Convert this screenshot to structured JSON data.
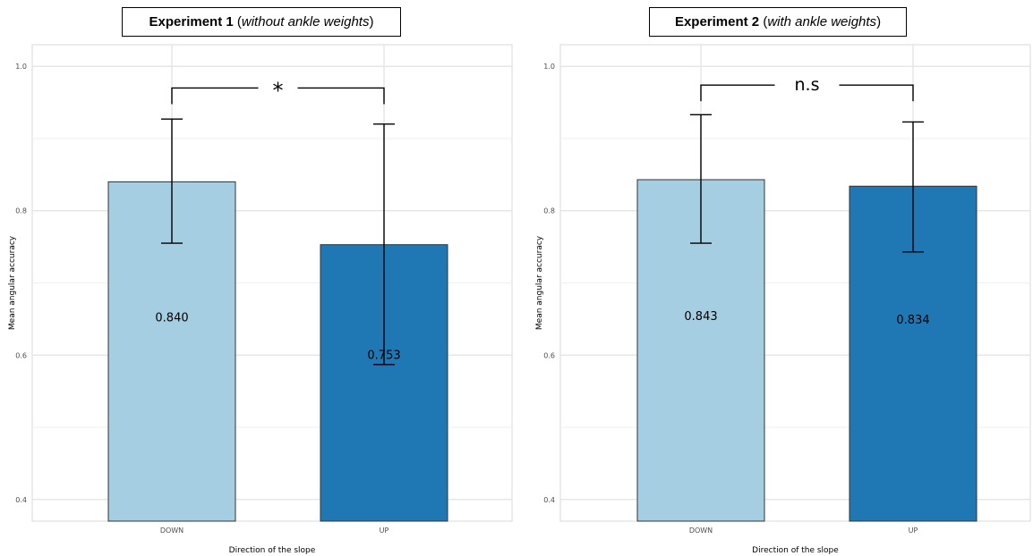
{
  "chart_data": [
    {
      "type": "bar",
      "title": {
        "bold": "Experiment 1",
        "italic": "without ankle weights"
      },
      "xlabel": "Direction of the slope",
      "ylabel": "Mean angular accuracy",
      "categories": [
        "DOWN",
        "UP"
      ],
      "values": [
        0.84,
        0.753
      ],
      "value_labels": [
        "0.840",
        "0.753"
      ],
      "error_bars": [
        {
          "low": 0.755,
          "high": 0.927
        },
        {
          "low": 0.587,
          "high": 0.92
        }
      ],
      "bar_colors": [
        "#a6cee3",
        "#1f78b4"
      ],
      "ylim": [
        0.37,
        1.03
      ],
      "yticks": [
        0.4,
        0.6,
        0.8,
        1.0
      ],
      "ytick_labels": [
        "0.4",
        "0.6",
        "0.8",
        "1.0"
      ],
      "grid": true,
      "significance": {
        "label": "*",
        "bracket_y": 0.97
      }
    },
    {
      "type": "bar",
      "title": {
        "bold": "Experiment 2",
        "italic": "with ankle weights"
      },
      "xlabel": "Direction of the slope",
      "ylabel": "Mean angular accuracy",
      "categories": [
        "DOWN",
        "UP"
      ],
      "values": [
        0.843,
        0.834
      ],
      "value_labels": [
        "0.843",
        "0.834"
      ],
      "error_bars": [
        {
          "low": 0.755,
          "high": 0.933
        },
        {
          "low": 0.743,
          "high": 0.923
        }
      ],
      "bar_colors": [
        "#a6cee3",
        "#1f78b4"
      ],
      "ylim": [
        0.37,
        1.03
      ],
      "yticks": [
        0.4,
        0.6,
        0.8,
        1.0
      ],
      "ytick_labels": [
        "0.4",
        "0.6",
        "0.8",
        "1.0"
      ],
      "grid": true,
      "significance": {
        "label": "n.s",
        "bracket_y": 0.974
      }
    }
  ]
}
